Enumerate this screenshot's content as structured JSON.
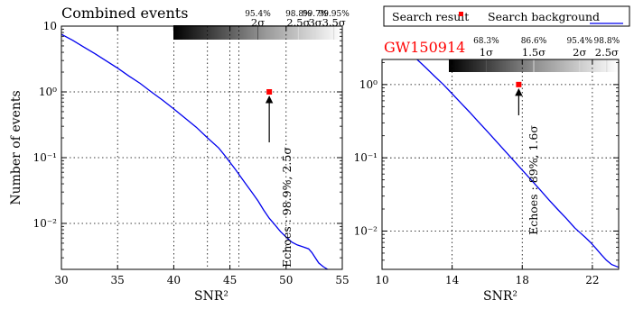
{
  "chart_data": [
    {
      "type": "line",
      "title": "Combined events",
      "xlabel": "SNR²",
      "ylabel": "Number of events",
      "xlim": [
        30,
        55
      ],
      "ylim": [
        0.002,
        10
      ],
      "yscale": "log",
      "grid": true,
      "x_ticks": [
        30,
        35,
        40,
        45,
        50,
        55
      ],
      "y_ticks": [
        {
          "value": 10,
          "label": "10"
        },
        {
          "value": 1,
          "label": "10⁰"
        },
        {
          "value": 0.1,
          "label": "10⁻¹"
        },
        {
          "value": 0.01,
          "label": "10⁻²"
        }
      ],
      "extra_vlines": [
        43,
        45.8
      ],
      "series": [
        {
          "color": "#0000ee",
          "x": [
            30,
            31,
            32,
            33,
            34,
            35,
            36,
            37,
            38,
            39,
            40,
            41,
            42,
            43,
            44,
            44.5,
            45,
            45.5,
            46,
            46.5,
            47,
            47.5,
            48,
            48.5,
            49,
            49.5,
            50,
            50.5,
            51,
            51.5,
            52,
            52.3,
            52.6,
            52.9,
            53.3,
            53.7
          ],
          "y": [
            7.5,
            6.1,
            4.8,
            3.8,
            2.95,
            2.3,
            1.75,
            1.35,
            1.0,
            0.75,
            0.55,
            0.4,
            0.29,
            0.2,
            0.14,
            0.11,
            0.085,
            0.066,
            0.05,
            0.038,
            0.029,
            0.022,
            0.016,
            0.012,
            0.0095,
            0.0075,
            0.0062,
            0.0052,
            0.0047,
            0.0044,
            0.0041,
            0.0036,
            0.003,
            0.0025,
            0.0022,
            0.002
          ]
        }
      ],
      "marker": {
        "x": 48.5,
        "y": 1.0,
        "color": "#ff0000"
      },
      "annotation": "Echoes : 98.9%, 2.5σ",
      "sigma_bar": {
        "labels": [
          {
            "percent": "95.4%",
            "sigma": "2σ"
          },
          {
            "percent": "98.8%",
            "sigma": "2.5σ"
          },
          {
            "percent": "99.7%",
            "sigma": "3σ"
          },
          {
            "percent": "99.95%",
            "sigma": "3.5σ"
          }
        ]
      }
    },
    {
      "type": "line",
      "title": "GW150914",
      "title_color": "#ff0000",
      "xlabel": "SNR²",
      "xlim": [
        10,
        23.5
      ],
      "ylim": [
        0.003,
        2.2
      ],
      "yscale": "log",
      "grid": true,
      "x_ticks": [
        10,
        14,
        18,
        22
      ],
      "y_ticks": [
        {
          "value": 1,
          "label": "10⁰"
        },
        {
          "value": 0.1,
          "label": "10⁻¹"
        },
        {
          "value": 0.01,
          "label": "10⁻²"
        }
      ],
      "series": [
        {
          "name": "Search background",
          "color": "#0000ee",
          "x": [
            12,
            12.5,
            13,
            13.5,
            14,
            14.5,
            15,
            15.5,
            16,
            16.5,
            17,
            17.5,
            18,
            18.5,
            19,
            19.5,
            20,
            20.5,
            21,
            21.3,
            21.6,
            21.9,
            22.2,
            22.5,
            22.8,
            23.1,
            23.5
          ],
          "y": [
            2.2,
            1.7,
            1.3,
            1.0,
            0.75,
            0.56,
            0.42,
            0.31,
            0.23,
            0.17,
            0.125,
            0.092,
            0.068,
            0.05,
            0.037,
            0.027,
            0.02,
            0.015,
            0.011,
            0.0095,
            0.0082,
            0.007,
            0.0058,
            0.0048,
            0.004,
            0.0035,
            0.0032
          ]
        }
      ],
      "marker": {
        "x": 17.8,
        "y": 1.0,
        "color": "#ff0000",
        "name": "Search result"
      },
      "annotation": "Echoes : 89%, 1.6σ",
      "legend": {
        "placement": "top",
        "entries": [
          "Search result",
          "Search background"
        ]
      },
      "sigma_bar": {
        "labels": [
          {
            "percent": "68.3%",
            "sigma": "1σ"
          },
          {
            "percent": "86.6%",
            "sigma": "1.5σ"
          },
          {
            "percent": "95.4%",
            "sigma": "2σ"
          },
          {
            "percent": "98.8%",
            "sigma": "2.5σ"
          }
        ]
      }
    }
  ]
}
